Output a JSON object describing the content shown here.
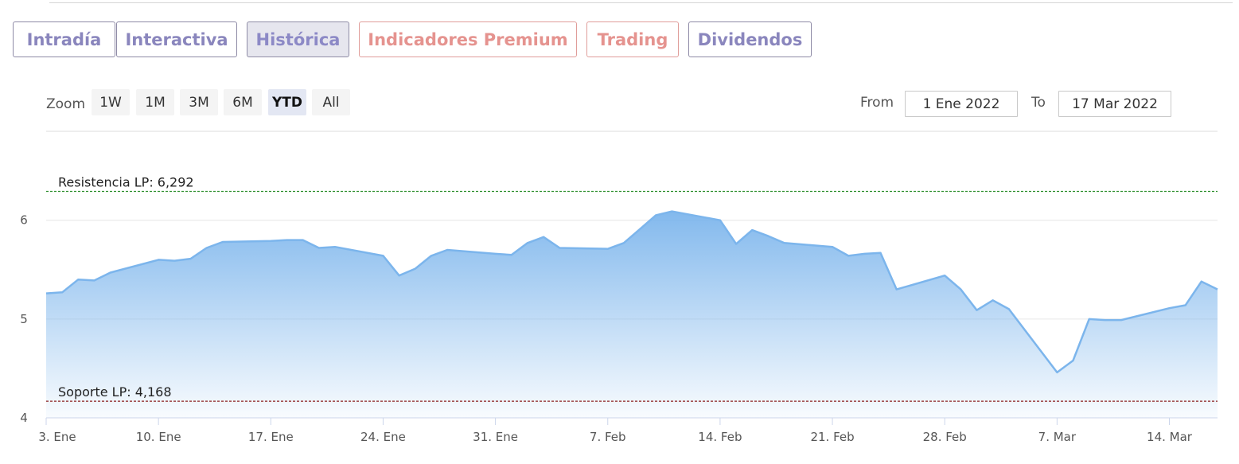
{
  "tabs": [
    {
      "label": "Intradía",
      "color": "purple"
    },
    {
      "label": "Interactiva",
      "color": "purple"
    },
    {
      "label": "Histórica",
      "color": "purple",
      "active": true
    },
    {
      "label": "Indicadores Premium",
      "color": "red"
    },
    {
      "label": "Trading",
      "color": "red"
    },
    {
      "label": "Dividendos",
      "color": "purple"
    }
  ],
  "range_selector": {
    "zoom_label": "Zoom",
    "buttons": [
      "1W",
      "1M",
      "3M",
      "6M",
      "YTD",
      "All"
    ],
    "selected": "YTD",
    "from_label": "From",
    "from_value": "1 Ene 2022",
    "to_label": "To",
    "to_value": "17 Mar 2022"
  },
  "colors": {
    "line": "#7cb5ec",
    "resistance": "#2f8f2f",
    "support": "#8b1e1e",
    "tab_purple": "#8a86bd",
    "tab_red": "#e5938f"
  },
  "chart_data": {
    "type": "area",
    "x_tick_labels": [
      "3. Ene",
      "10. Ene",
      "17. Ene",
      "24. Ene",
      "31. Ene",
      "7. Feb",
      "14. Feb",
      "21. Feb",
      "28. Feb",
      "7. Mar",
      "14. Mar"
    ],
    "y_tick_labels": [
      "4",
      "5",
      "6"
    ],
    "ylim": [
      4,
      6.9
    ],
    "xlim": [
      "2022-01-03",
      "2022-03-17"
    ],
    "grid": true,
    "series": [
      {
        "x": [
          "2022-01-03",
          "2022-01-04",
          "2022-01-05",
          "2022-01-06",
          "2022-01-07",
          "2022-01-10",
          "2022-01-11",
          "2022-01-12",
          "2022-01-13",
          "2022-01-14",
          "2022-01-17",
          "2022-01-18",
          "2022-01-19",
          "2022-01-20",
          "2022-01-21",
          "2022-01-24",
          "2022-01-25",
          "2022-01-26",
          "2022-01-27",
          "2022-01-28",
          "2022-01-31",
          "2022-02-01",
          "2022-02-02",
          "2022-02-03",
          "2022-02-04",
          "2022-02-07",
          "2022-02-08",
          "2022-02-09",
          "2022-02-10",
          "2022-02-11",
          "2022-02-14",
          "2022-02-15",
          "2022-02-16",
          "2022-02-17",
          "2022-02-18",
          "2022-02-21",
          "2022-02-22",
          "2022-02-23",
          "2022-02-24",
          "2022-02-25",
          "2022-02-28",
          "2022-03-01",
          "2022-03-02",
          "2022-03-03",
          "2022-03-04",
          "2022-03-07",
          "2022-03-08",
          "2022-03-09",
          "2022-03-10",
          "2022-03-11",
          "2022-03-14",
          "2022-03-15",
          "2022-03-16",
          "2022-03-17"
        ],
        "y": [
          5.26,
          5.27,
          5.4,
          5.39,
          5.47,
          5.6,
          5.59,
          5.61,
          5.72,
          5.78,
          5.79,
          5.8,
          5.8,
          5.72,
          5.73,
          5.64,
          5.44,
          5.51,
          5.64,
          5.7,
          5.66,
          5.65,
          5.77,
          5.83,
          5.72,
          5.71,
          5.77,
          5.91,
          6.05,
          6.09,
          6.0,
          5.76,
          5.9,
          5.84,
          5.77,
          5.73,
          5.64,
          5.66,
          5.67,
          5.3,
          5.44,
          5.3,
          5.09,
          5.19,
          5.1,
          4.46,
          4.58,
          5.0,
          4.99,
          4.99,
          5.11,
          5.14,
          5.38,
          5.3
        ]
      }
    ],
    "plot_lines": [
      {
        "label": "Resistencia LP: 6,292",
        "value": 6.292,
        "style": "dashed"
      },
      {
        "label": "Soporte LP: 4,168",
        "value": 4.168,
        "style": "dashed"
      }
    ]
  }
}
